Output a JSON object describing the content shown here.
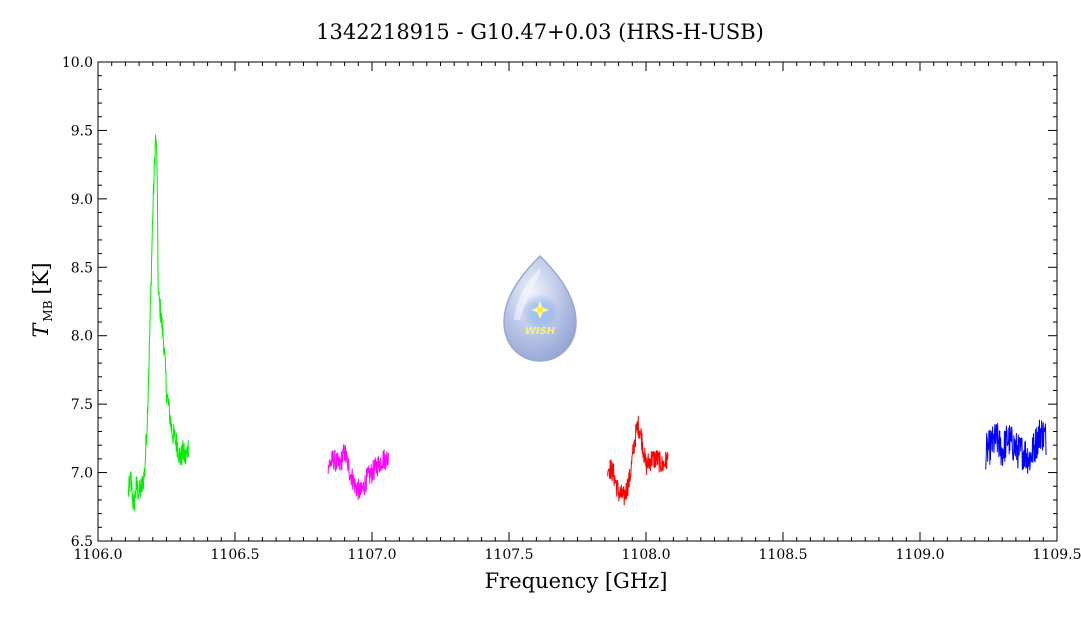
{
  "chart_data": {
    "type": "line",
    "title": "1342218915 - G10.47+0.03 (HRS-H-USB)",
    "xlabel": "Frequency [GHz]",
    "ylabel_main": "T",
    "ylabel_sub": "MB",
    "ylabel_unit": "[K]",
    "xlim": [
      1106.0,
      1109.5
    ],
    "ylim": [
      6.5,
      10.0
    ],
    "xticks": [
      1106.0,
      1106.5,
      1107.0,
      1107.5,
      1108.0,
      1108.5,
      1109.0,
      1109.5
    ],
    "xtick_labels": [
      "1106.0",
      "1106.5",
      "1107.0",
      "1107.5",
      "1108.0",
      "1108.5",
      "1109.0",
      "1109.5"
    ],
    "yticks": [
      6.5,
      7.0,
      7.5,
      8.0,
      8.5,
      9.0,
      9.5,
      10.0
    ],
    "ytick_labels": [
      "6.5",
      "7.0",
      "7.5",
      "8.0",
      "8.5",
      "9.0",
      "9.5",
      "10.0"
    ],
    "grid": false,
    "series": [
      {
        "color": "#00ee00",
        "x": [
          1106.11,
          1106.12,
          1106.13,
          1106.14,
          1106.15,
          1106.16,
          1106.17,
          1106.18,
          1106.19,
          1106.2,
          1106.21,
          1106.215,
          1106.22,
          1106.23,
          1106.24,
          1106.25,
          1106.26,
          1106.27,
          1106.28,
          1106.29,
          1106.3,
          1106.31,
          1106.32,
          1106.33
        ],
        "y": [
          6.85,
          6.95,
          6.75,
          6.9,
          6.85,
          6.9,
          7.0,
          7.4,
          8.1,
          8.9,
          9.45,
          9.3,
          8.3,
          8.15,
          7.95,
          7.6,
          7.45,
          7.3,
          7.25,
          7.2,
          7.1,
          7.15,
          7.1,
          7.2
        ]
      },
      {
        "color": "#ff00ff",
        "x": [
          1106.84,
          1106.86,
          1106.88,
          1106.9,
          1106.92,
          1106.94,
          1106.96,
          1106.98,
          1107.0,
          1107.02,
          1107.04,
          1107.06
        ],
        "y": [
          7.05,
          7.1,
          7.05,
          7.15,
          7.0,
          6.9,
          6.85,
          6.95,
          7.0,
          7.05,
          7.1,
          7.1
        ]
      },
      {
        "color": "#ff0000",
        "x": [
          1107.86,
          1107.88,
          1107.9,
          1107.92,
          1107.94,
          1107.96,
          1107.97,
          1107.98,
          1108.0,
          1108.02,
          1108.04,
          1108.06,
          1108.08
        ],
        "y": [
          7.05,
          7.0,
          6.85,
          6.82,
          6.95,
          7.25,
          7.35,
          7.3,
          7.05,
          7.1,
          7.1,
          7.05,
          7.1
        ]
      },
      {
        "color": "#0000ff",
        "x": [
          1109.24,
          1109.26,
          1109.28,
          1109.3,
          1109.32,
          1109.34,
          1109.36,
          1109.38,
          1109.4,
          1109.42,
          1109.44,
          1109.46
        ],
        "y": [
          7.15,
          7.2,
          7.25,
          7.15,
          7.25,
          7.2,
          7.15,
          7.15,
          7.1,
          7.2,
          7.3,
          7.25
        ]
      }
    ]
  },
  "logo": {
    "text": "WISH"
  }
}
